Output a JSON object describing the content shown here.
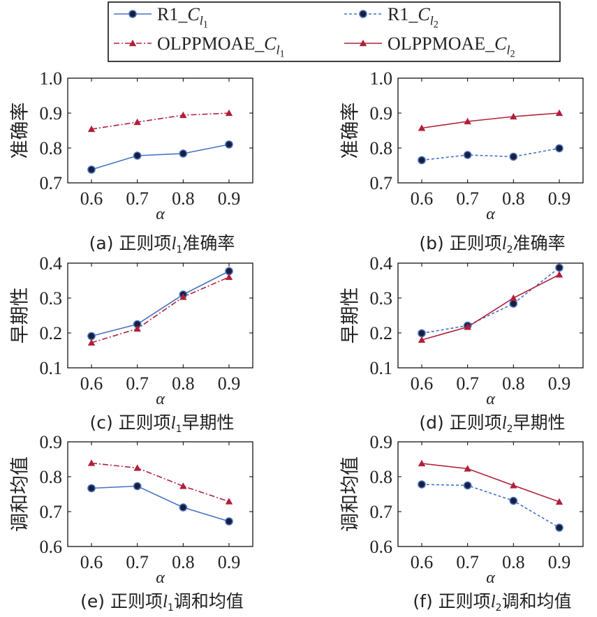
{
  "legend": {
    "entries": [
      {
        "prefix": "R1_",
        "sub": "1",
        "style": "s1"
      },
      {
        "prefix": "R1_",
        "sub": "2",
        "style": "s2"
      },
      {
        "prefix": "OLPPMOAE_",
        "sub": "1",
        "style": "s3"
      },
      {
        "prefix": "OLPPMOAE_",
        "sub": "2",
        "style": "s4"
      }
    ]
  },
  "styles": {
    "s1": {
      "color": "#4472c4",
      "dash": "",
      "marker": "circle"
    },
    "s2": {
      "color": "#4472c4",
      "dash": "4,3",
      "marker": "circle"
    },
    "s3": {
      "color": "#b0203a",
      "dash": "8,3,2,3",
      "marker": "triangle"
    },
    "s4": {
      "color": "#b0203a",
      "dash": "",
      "marker": "triangle"
    }
  },
  "chart_data": [
    {
      "type": "line",
      "caption_prefix": "(a) 正则项",
      "caption_sub": "1",
      "caption_suffix": "准确率",
      "ylabel": "准确率",
      "xlabel": "α",
      "x": [
        0.6,
        0.7,
        0.8,
        0.9
      ],
      "xticks": [
        "0.6",
        "0.7",
        "0.8",
        "0.9"
      ],
      "ylim": [
        0.7,
        1.0
      ],
      "yticks": [
        "0.7",
        "0.8",
        "0.9",
        "1.0"
      ],
      "series": [
        {
          "style": "s1",
          "values": [
            0.738,
            0.778,
            0.784,
            0.81
          ]
        },
        {
          "style": "s3",
          "values": [
            0.854,
            0.874,
            0.894,
            0.9
          ]
        }
      ]
    },
    {
      "type": "line",
      "caption_prefix": "(b) 正则项",
      "caption_sub": "2",
      "caption_suffix": "准确率",
      "ylabel": "准确率",
      "xlabel": "α",
      "x": [
        0.6,
        0.7,
        0.8,
        0.9
      ],
      "xticks": [
        "0.6",
        "0.7",
        "0.8",
        "0.9"
      ],
      "ylim": [
        0.7,
        1.0
      ],
      "yticks": [
        "0.7",
        "0.8",
        "0.9",
        "1.0"
      ],
      "series": [
        {
          "style": "s2",
          "values": [
            0.765,
            0.78,
            0.775,
            0.799
          ]
        },
        {
          "style": "s4",
          "values": [
            0.857,
            0.876,
            0.89,
            0.9
          ]
        }
      ]
    },
    {
      "type": "line",
      "caption_prefix": "(c) 正则项",
      "caption_sub": "1",
      "caption_suffix": "早期性",
      "ylabel": "早期性",
      "xlabel": "α",
      "x": [
        0.6,
        0.7,
        0.8,
        0.9
      ],
      "xticks": [
        "0.6",
        "0.7",
        "0.8",
        "0.9"
      ],
      "ylim": [
        0.1,
        0.4
      ],
      "yticks": [
        "0.1",
        "0.2",
        "0.3",
        "0.4"
      ],
      "series": [
        {
          "style": "s1",
          "values": [
            0.191,
            0.225,
            0.31,
            0.377
          ]
        },
        {
          "style": "s3",
          "values": [
            0.172,
            0.212,
            0.303,
            0.36
          ]
        }
      ]
    },
    {
      "type": "line",
      "caption_prefix": "(d) 正则项",
      "caption_sub": "2",
      "caption_suffix": "早期性",
      "ylabel": "早期性",
      "xlabel": "α",
      "x": [
        0.6,
        0.7,
        0.8,
        0.9
      ],
      "xticks": [
        "0.6",
        "0.7",
        "0.8",
        "0.9"
      ],
      "ylim": [
        0.1,
        0.4
      ],
      "yticks": [
        "0.1",
        "0.2",
        "0.3",
        "0.4"
      ],
      "series": [
        {
          "style": "s2",
          "values": [
            0.199,
            0.221,
            0.284,
            0.387
          ]
        },
        {
          "style": "s4",
          "values": [
            0.18,
            0.217,
            0.3,
            0.367
          ]
        }
      ]
    },
    {
      "type": "line",
      "caption_prefix": "(e) 正则项",
      "caption_sub": "1",
      "caption_suffix": "调和均值",
      "ylabel": "调和均值",
      "xlabel": "α",
      "x": [
        0.6,
        0.7,
        0.8,
        0.9
      ],
      "xticks": [
        "0.6",
        "0.7",
        "0.8",
        "0.9"
      ],
      "ylim": [
        0.6,
        0.9
      ],
      "yticks": [
        "0.6",
        "0.7",
        "0.8",
        "0.9"
      ],
      "series": [
        {
          "style": "s1",
          "values": [
            0.767,
            0.773,
            0.712,
            0.672
          ]
        },
        {
          "style": "s3",
          "values": [
            0.839,
            0.825,
            0.773,
            0.729
          ]
        }
      ]
    },
    {
      "type": "line",
      "caption_prefix": "(f) 正则项",
      "caption_sub": "2",
      "caption_suffix": "调和均值",
      "ylabel": "调和均值",
      "xlabel": "α",
      "x": [
        0.6,
        0.7,
        0.8,
        0.9
      ],
      "xticks": [
        "0.6",
        "0.7",
        "0.8",
        "0.9"
      ],
      "ylim": [
        0.6,
        0.9
      ],
      "yticks": [
        "0.6",
        "0.7",
        "0.8",
        "0.9"
      ],
      "series": [
        {
          "style": "s2",
          "values": [
            0.778,
            0.775,
            0.731,
            0.654
          ]
        },
        {
          "style": "s4",
          "values": [
            0.838,
            0.823,
            0.775,
            0.728
          ]
        }
      ]
    }
  ]
}
